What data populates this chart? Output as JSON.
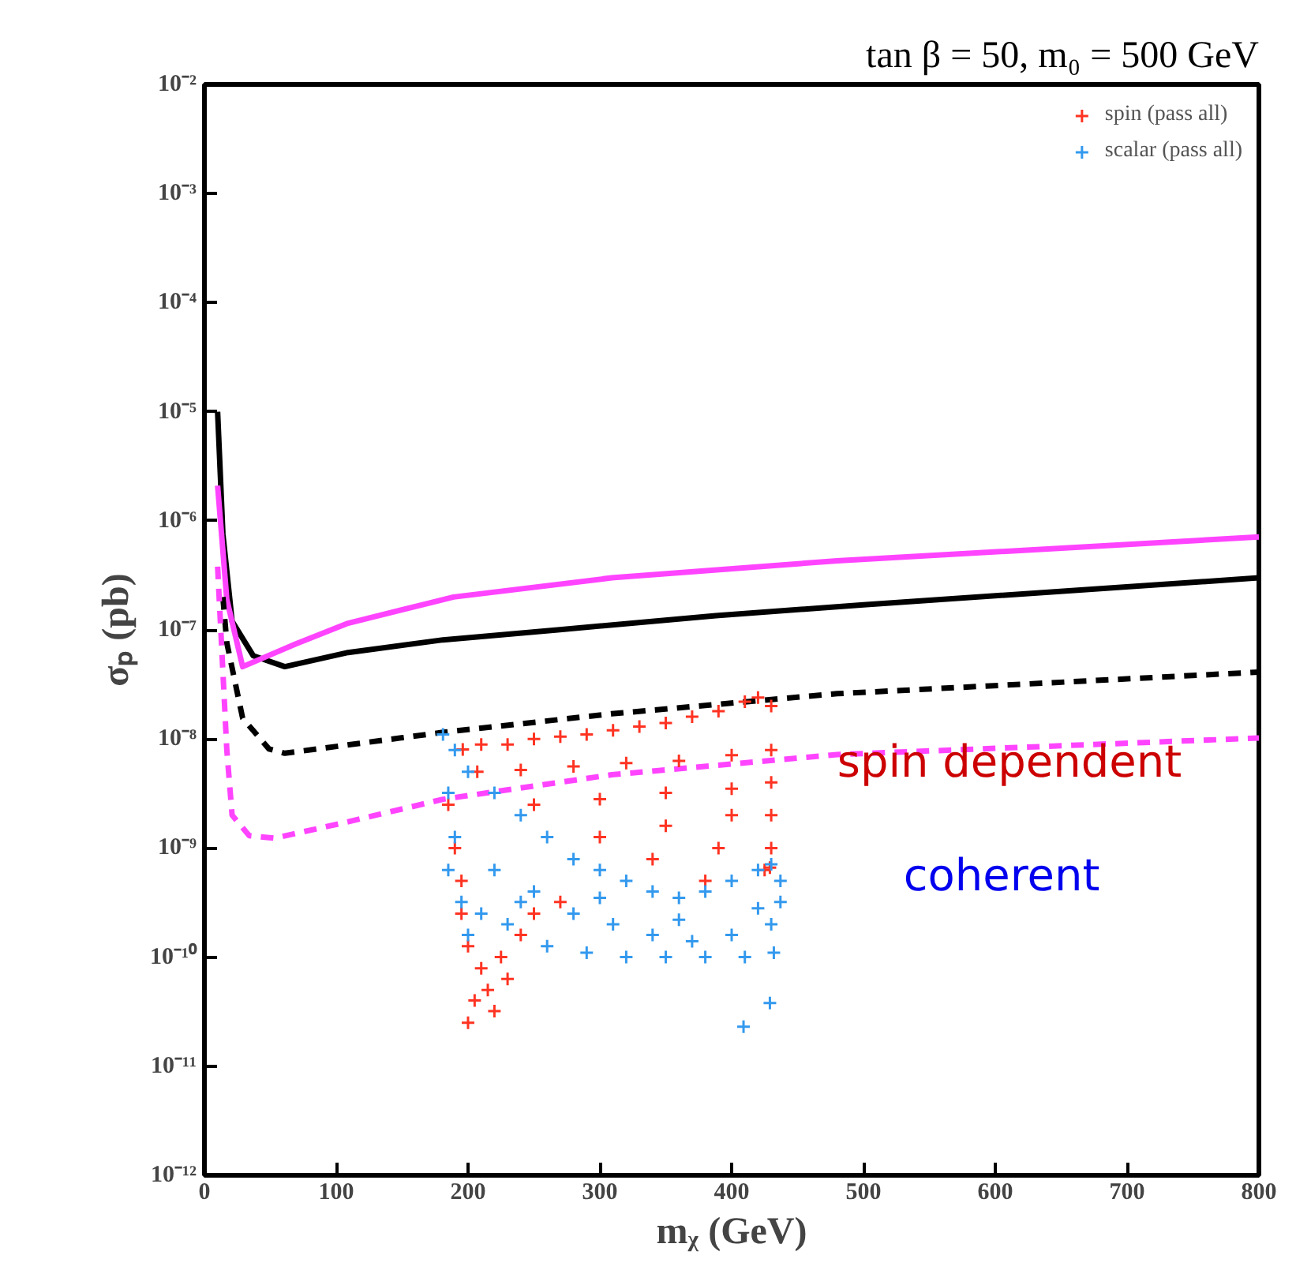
{
  "chart_data": {
    "type": "scatter",
    "title": "tan β = 50, m₀ = 500 GeV",
    "xlabel": "mᵪ (GeV)",
    "ylabel": "σₚ (pb)",
    "log": "y",
    "grid": false,
    "legend": "top right",
    "xlim": [
      0,
      800
    ],
    "xticks": [
      0,
      100,
      200,
      300,
      400,
      500,
      600,
      700,
      800
    ],
    "ylim": [
      1e-12,
      0.01
    ],
    "yticks": [
      {
        "value": 1e-12,
        "label": "10⁻¹²"
      },
      {
        "value": 1e-11,
        "label": "10⁻¹¹"
      },
      {
        "value": 1e-10,
        "label": "10⁻¹⁰"
      },
      {
        "value": 1e-09,
        "label": "10⁻⁹"
      },
      {
        "value": 1e-08,
        "label": "10⁻⁸"
      },
      {
        "value": 1e-07,
        "label": "10⁻⁷"
      },
      {
        "value": 1e-06,
        "label": "10⁻⁶"
      },
      {
        "value": 1e-05,
        "label": "10⁻⁵"
      },
      {
        "value": 0.0001,
        "label": "10⁻⁴"
      },
      {
        "value": 0.001,
        "label": "10⁻³"
      },
      {
        "value": 0.01,
        "label": "10⁻²"
      }
    ],
    "series": [
      {
        "type": "line",
        "color": "#000000",
        "line_style": "solid",
        "marker": "none",
        "x": [
          10,
          14,
          21,
          37,
          61,
          109,
          181,
          268,
          388,
          500,
          800
        ],
        "values": [
          1e-05,
          7.6e-07,
          1.2e-07,
          5.8e-08,
          4.6e-08,
          6.2e-08,
          8.1e-08,
          1e-07,
          1.35e-07,
          1.7e-07,
          3e-07
        ]
      },
      {
        "type": "line",
        "color": "#ff44ff",
        "line_style": "solid",
        "marker": "none",
        "x": [
          10,
          17,
          29,
          69,
          109,
          189,
          309,
          480,
          800
        ],
        "values": [
          2.1e-06,
          1.9e-07,
          4.6e-08,
          7.4e-08,
          1.15e-07,
          2e-07,
          3e-07,
          4.3e-07,
          7.1e-07
        ]
      },
      {
        "type": "line",
        "color": "#000000",
        "line_style": "dashed",
        "marker": "none",
        "x": [
          14,
          17,
          29,
          49,
          61,
          181,
          309,
          480,
          800
        ],
        "values": [
          2e-07,
          7.6e-08,
          1.55e-08,
          8.1e-09,
          7.4e-09,
          1.15e-08,
          1.7e-08,
          2.6e-08,
          4.1e-08
        ]
      },
      {
        "type": "line",
        "color": "#ff44ff",
        "line_style": "dashed",
        "marker": "none",
        "x": [
          10,
          17,
          21,
          34,
          53,
          109,
          181,
          309,
          480,
          800
        ],
        "values": [
          3.8e-07,
          7.9e-09,
          2e-09,
          1.3e-09,
          1.23e-09,
          1.74e-09,
          2.8e-09,
          4.7e-09,
          7.2e-09,
          1.02e-08
        ]
      },
      {
        "name": "spin (pass all)",
        "color": "#ff3322",
        "marker": "cross",
        "x": [
          196,
          210,
          230,
          250,
          270,
          290,
          310,
          330,
          350,
          370,
          390,
          410,
          420,
          430,
          207,
          240,
          280,
          320,
          360,
          400,
          430,
          250,
          300,
          350,
          400,
          430,
          300,
          350,
          400,
          430,
          340,
          390,
          430,
          380,
          425,
          185,
          190,
          195,
          195,
          200,
          210,
          205,
          200,
          215,
          225,
          240,
          250,
          270,
          230,
          220,
          429
        ],
        "values": [
          8e-09,
          8.9e-09,
          8.9e-09,
          1e-08,
          1.05e-08,
          1.1e-08,
          1.2e-08,
          1.3e-08,
          1.4e-08,
          1.6e-08,
          1.8e-08,
          2.2e-08,
          2.4e-08,
          2e-08,
          5e-09,
          5.2e-09,
          5.6e-09,
          6e-09,
          6.3e-09,
          7.1e-09,
          7.9e-09,
          2.5e-09,
          2.8e-09,
          3.2e-09,
          3.5e-09,
          4e-09,
          1.26e-09,
          1.6e-09,
          2e-09,
          2e-09,
          7.9e-10,
          1e-09,
          1e-09,
          5e-10,
          6.3e-10,
          2.5e-09,
          1e-09,
          5e-10,
          2.5e-10,
          1.26e-10,
          7.9e-11,
          4e-11,
          2.5e-11,
          5e-11,
          1e-10,
          1.6e-10,
          2.5e-10,
          3.2e-10,
          6.3e-11,
          3.2e-11,
          6.6e-10
        ]
      },
      {
        "name": "scalar (pass all)",
        "color": "#3399ee",
        "marker": "cross",
        "x": [
          181,
          190,
          200,
          185,
          190,
          185,
          195,
          200,
          220,
          240,
          260,
          280,
          300,
          320,
          340,
          360,
          380,
          400,
          420,
          437,
          430,
          220,
          250,
          280,
          310,
          340,
          370,
          400,
          430,
          230,
          260,
          290,
          320,
          350,
          380,
          410,
          432,
          240,
          210,
          300,
          360,
          420,
          437,
          409,
          429
        ],
        "values": [
          1.1e-08,
          7.9e-09,
          5e-09,
          3.2e-09,
          1.26e-09,
          6.3e-10,
          3.2e-10,
          1.6e-10,
          3.2e-09,
          2e-09,
          1.26e-09,
          7.9e-10,
          6.3e-10,
          5e-10,
          4e-10,
          3.5e-10,
          4e-10,
          5e-10,
          6.3e-10,
          5e-10,
          7.1e-10,
          6.3e-10,
          4e-10,
          2.5e-10,
          2e-10,
          1.6e-10,
          1.4e-10,
          1.6e-10,
          2e-10,
          2e-10,
          1.26e-10,
          1.1e-10,
          1e-10,
          1e-10,
          1e-10,
          1e-10,
          1.1e-10,
          3.2e-10,
          2.5e-10,
          3.5e-10,
          2.2e-10,
          2.8e-10,
          3.2e-10,
          2.3e-11,
          3.8e-11
        ]
      }
    ],
    "annotations": [
      "spin dependent",
      "coherent"
    ]
  }
}
